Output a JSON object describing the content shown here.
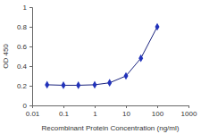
{
  "chart_data": {
    "type": "line",
    "x_label": "Recombinant Protein Concentration (ng/ml)",
    "y_label": "OD 450",
    "x": [
      0.03,
      0.1,
      0.3,
      1,
      3,
      10,
      30,
      100
    ],
    "values": [
      0.21,
      0.205,
      0.205,
      0.21,
      0.23,
      0.3,
      0.48,
      0.8
    ],
    "color": "#2233bb",
    "marker": "diamond",
    "log": "x",
    "grid": false,
    "xlim": [
      0.01,
      1000
    ],
    "ylim": [
      0,
      1
    ],
    "xticks": [
      0.01,
      0.1,
      1,
      10,
      100,
      1000
    ],
    "yticks": [
      0,
      0.2,
      0.4,
      0.6,
      0.8,
      1
    ]
  }
}
